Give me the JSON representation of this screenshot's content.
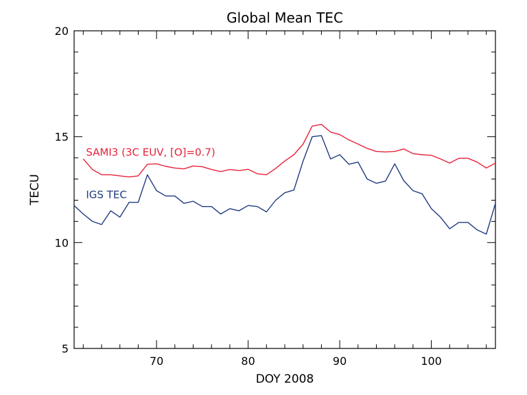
{
  "chart_data": {
    "type": "line",
    "title": "Global Mean TEC",
    "xlabel": "DOY 2008",
    "ylabel": "TECU",
    "xlim": [
      61,
      107
    ],
    "ylim": [
      5,
      20
    ],
    "xticks": [
      70,
      80,
      90,
      100
    ],
    "yticks": [
      5,
      10,
      15,
      20
    ],
    "grid": false,
    "series": [
      {
        "name": "SAMI3 (3C EUV, [O]=0.7)",
        "color": "#e8223a",
        "x": [
          62,
          63,
          64,
          65,
          66,
          67,
          68,
          69,
          70,
          71,
          72,
          73,
          74,
          75,
          76,
          77,
          78,
          79,
          80,
          81,
          82,
          83,
          84,
          85,
          86,
          87,
          88,
          89,
          90,
          91,
          92,
          93,
          94,
          95,
          96,
          97,
          98,
          99,
          100,
          101,
          102,
          103,
          104,
          105,
          106,
          107
        ],
        "values": [
          13.95,
          13.45,
          13.2,
          13.2,
          13.15,
          13.1,
          13.15,
          13.7,
          13.72,
          13.6,
          13.52,
          13.48,
          13.62,
          13.58,
          13.45,
          13.35,
          13.45,
          13.4,
          13.46,
          13.25,
          13.2,
          13.5,
          13.85,
          14.15,
          14.65,
          15.5,
          15.58,
          15.22,
          15.1,
          14.85,
          14.65,
          14.45,
          14.3,
          14.28,
          14.3,
          14.42,
          14.2,
          14.15,
          14.12,
          13.95,
          13.75,
          13.98,
          13.98,
          13.8,
          13.52,
          13.75
        ]
      },
      {
        "name": "IGS TEC",
        "color": "#1f3a80",
        "x": [
          61,
          62,
          63,
          64,
          65,
          66,
          67,
          68,
          69,
          70,
          71,
          72,
          73,
          74,
          75,
          76,
          77,
          78,
          79,
          80,
          81,
          82,
          83,
          84,
          85,
          86,
          87,
          88,
          89,
          90,
          91,
          92,
          93,
          94,
          95,
          96,
          97,
          98,
          99,
          100,
          101,
          102,
          103,
          104,
          105,
          106,
          107
        ],
        "values": [
          11.75,
          11.35,
          11.0,
          10.85,
          11.5,
          11.2,
          11.9,
          11.9,
          13.2,
          12.45,
          12.2,
          12.2,
          11.85,
          11.95,
          11.7,
          11.7,
          11.35,
          11.6,
          11.5,
          11.75,
          11.7,
          11.45,
          12.0,
          12.35,
          12.48,
          13.85,
          15.0,
          15.05,
          13.95,
          14.15,
          13.7,
          13.8,
          13.0,
          12.8,
          12.9,
          13.72,
          12.92,
          12.45,
          12.3,
          11.6,
          11.2,
          10.65,
          10.95,
          10.95,
          10.6,
          10.4,
          11.85
        ]
      }
    ],
    "annotations": [
      {
        "text": "SAMI3 (3C EUV, [O]=0.7)",
        "series": "SAMI3 (3C EUV, [O]=0.7)",
        "x": 62,
        "y": 14.1
      },
      {
        "text": "IGS TEC",
        "series": "IGS TEC",
        "x": 62,
        "y": 12.1
      }
    ]
  }
}
